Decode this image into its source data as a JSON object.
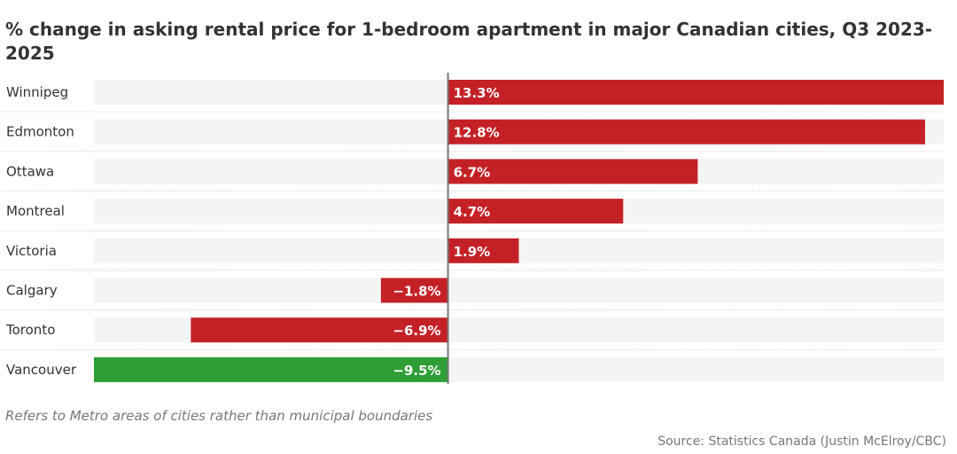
{
  "chart_data": {
    "type": "bar",
    "orientation": "horizontal",
    "title": "% change in asking rental price for 1-bedroom apartment in major Canadian cities, Q3 2023-2025",
    "categories": [
      "Winnipeg",
      "Edmonton",
      "Ottawa",
      "Montreal",
      "Victoria",
      "Calgary",
      "Toronto",
      "Vancouver"
    ],
    "values": [
      13.3,
      12.8,
      6.7,
      4.7,
      1.9,
      -1.8,
      -6.9,
      -9.5
    ],
    "labels": [
      "13.3%",
      "12.8%",
      "6.7%",
      "4.7%",
      "1.9%",
      "−1.8%",
      "−6.9%",
      "−9.5%"
    ],
    "xlim": [
      -9.5,
      13.3
    ],
    "colors": {
      "default": "#c42127",
      "highlight": "#2f9e35",
      "track": "#f4f4f4",
      "zero_line": "#777777"
    },
    "highlight_category": "Vancouver",
    "grid": false,
    "note": "Refers to Metro areas of cities rather than municipal boundaries",
    "source": "Source: Statistics Canada (Justin McElroy/CBC)"
  }
}
